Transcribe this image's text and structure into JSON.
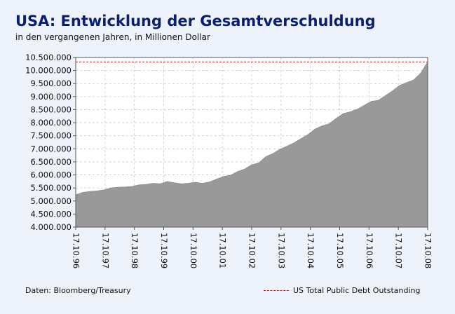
{
  "header": {
    "title": "USA: Entwicklung der Gesamtverschuldung",
    "subtitle": "in den vergangenen Jahren, in Millionen Dollar"
  },
  "footer": {
    "source": "Daten: Bloomberg/Treasury",
    "legend_label": "US Total Public Debt Outstanding"
  },
  "colors": {
    "title": "#0a1f70",
    "area_fill": "#999999",
    "reference_line": "#b02020",
    "plot_background": "#ffffff",
    "page_background": "#eef2fb"
  },
  "chart_data": {
    "type": "area",
    "title": "USA: Entwicklung der Gesamtverschuldung",
    "subtitle": "in den vergangenen Jahren, in Millionen Dollar",
    "x_tick_labels": [
      "17.10.96",
      "17.10.97",
      "17.10.98",
      "17.10.99",
      "17.10.00",
      "17.10.01",
      "17.10.02",
      "17.10.03",
      "17.10.04",
      "17.10.05",
      "17.10.06",
      "17.10.07",
      "17.10.08"
    ],
    "y_tick_values": [
      4000000,
      4500000,
      5000000,
      5500000,
      6000000,
      6500000,
      7000000,
      7500000,
      8000000,
      8500000,
      9000000,
      9500000,
      10000000,
      10500000
    ],
    "y_tick_labels": [
      "4.000.000",
      "4.500.000",
      "5.000.000",
      "5.500.000",
      "6.000.000",
      "6.500.000",
      "7.000.000",
      "7.500.000",
      "8.000.000",
      "8.500.000",
      "9.000.000",
      "9.500.000",
      "10.000.000",
      "10.500.000"
    ],
    "ylim": [
      4000000,
      10500000
    ],
    "grid": true,
    "reference_line": {
      "value": 10330000
    },
    "series": [
      {
        "name": "US Total Public Debt Outstanding",
        "x": [
          "17.10.96",
          "01.1997",
          "04.1997",
          "07.1997",
          "17.10.97",
          "01.1998",
          "04.1998",
          "07.1998",
          "17.10.98",
          "01.1999",
          "04.1999",
          "07.1999",
          "17.10.99",
          "01.2000",
          "04.2000",
          "07.2000",
          "17.10.00",
          "01.2001",
          "04.2001",
          "07.2001",
          "17.10.01",
          "01.2002",
          "04.2002",
          "07.2002",
          "17.10.02",
          "01.2003",
          "04.2003",
          "07.2003",
          "17.10.03",
          "01.2004",
          "04.2004",
          "07.2004",
          "17.10.04",
          "01.2005",
          "04.2005",
          "07.2005",
          "17.10.05",
          "01.2006",
          "04.2006",
          "07.2006",
          "17.10.06",
          "01.2007",
          "04.2007",
          "07.2007",
          "17.10.07",
          "01.2008",
          "04.2008",
          "07.2008",
          "08.2008",
          "09.2008",
          "17.10.08"
        ],
        "values": [
          5240000,
          5330000,
          5370000,
          5390000,
          5430000,
          5500000,
          5530000,
          5540000,
          5560000,
          5620000,
          5640000,
          5680000,
          5660000,
          5750000,
          5700000,
          5660000,
          5680000,
          5720000,
          5680000,
          5730000,
          5840000,
          5940000,
          5990000,
          6130000,
          6230000,
          6390000,
          6460000,
          6700000,
          6820000,
          6980000,
          7100000,
          7230000,
          7390000,
          7550000,
          7760000,
          7880000,
          7960000,
          8170000,
          8350000,
          8420000,
          8520000,
          8670000,
          8820000,
          8860000,
          9040000,
          9220000,
          9430000,
          9540000,
          9640000,
          9900000,
          10330000
        ]
      }
    ]
  }
}
